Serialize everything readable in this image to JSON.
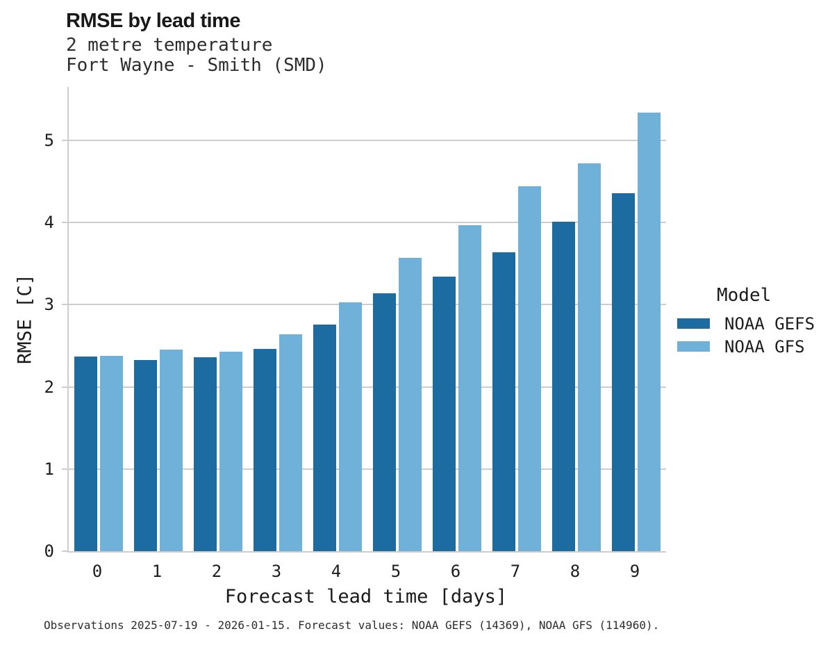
{
  "header": {
    "title": "RMSE by lead time",
    "subtitle1": "2 metre temperature",
    "subtitle2": "Fort Wayne - Smith (SMD)"
  },
  "footer": {
    "caption": "Observations 2025-07-19 - 2026-01-15. Forecast values: NOAA GEFS (14369), NOAA GFS (114960)."
  },
  "legend": {
    "title": "Model",
    "items": [
      {
        "label": "NOAA GEFS",
        "color": "#1c6ca1"
      },
      {
        "label": "NOAA GFS",
        "color": "#6fb1d8"
      }
    ]
  },
  "colors": {
    "gefs_dark_blue": "#1c6ca1",
    "gfs_light_blue": "#6fb1d8",
    "gridline_gray": "#cdcdcd",
    "axis_gray": "#cdcdcd"
  },
  "chart_data": {
    "type": "bar",
    "title": "RMSE by lead time",
    "subtitle": [
      "2 metre temperature",
      "Fort Wayne - Smith (SMD)"
    ],
    "categories": [
      "0",
      "1",
      "2",
      "3",
      "4",
      "5",
      "6",
      "7",
      "8",
      "9"
    ],
    "series": [
      {
        "name": "NOAA GEFS",
        "color": "#1c6ca1",
        "values": [
          2.37,
          2.33,
          2.36,
          2.46,
          2.76,
          3.14,
          3.34,
          3.64,
          4.01,
          4.36
        ]
      },
      {
        "name": "NOAA GFS",
        "color": "#6fb1d8",
        "values": [
          2.38,
          2.45,
          2.43,
          2.64,
          3.03,
          3.57,
          3.97,
          4.44,
          4.72,
          5.34
        ]
      }
    ],
    "xlabel": "Forecast lead time [days]",
    "ylabel": "RMSE [C]",
    "ylim": [
      0,
      5.65
    ],
    "yticks": [
      0,
      1,
      2,
      3,
      4,
      5
    ],
    "grid": true,
    "legend_title": "Model",
    "legend_position": "right"
  }
}
